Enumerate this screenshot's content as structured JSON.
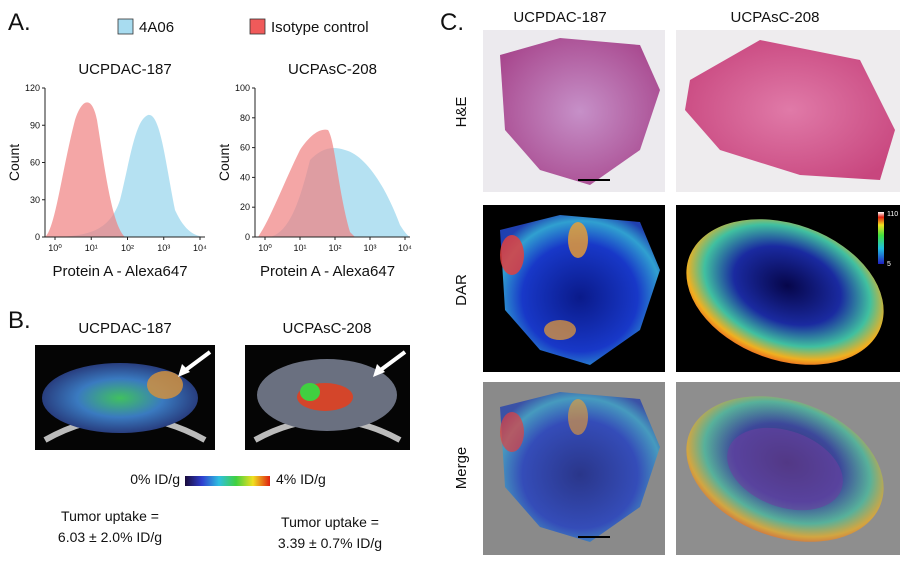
{
  "panel_a": {
    "letter": "A.",
    "legend": [
      "4A06",
      "Isotype control"
    ],
    "plots": [
      {
        "title": "UCPDAC-187",
        "y_label": "Count",
        "yticks": [
          "0",
          "30",
          "60",
          "90",
          "120"
        ],
        "xticks": [
          "10⁰",
          "10¹",
          "10²",
          "10³",
          "10⁴"
        ],
        "x_label": "Protein A - Alexa647"
      },
      {
        "title": "UCPAsC-208",
        "y_label": "Count",
        "yticks": [
          "0",
          "20",
          "40",
          "60",
          "80",
          "100"
        ],
        "xticks": [
          "10⁰",
          "10¹",
          "10²",
          "10³",
          "10⁴"
        ],
        "x_label": "Protein A - Alexa647"
      }
    ]
  },
  "panel_b": {
    "letter": "B.",
    "titles": [
      "UCPDAC-187",
      "UCPAsC-208"
    ],
    "colorbar": [
      "0% ID/g",
      "4% ID/g"
    ],
    "uptake": [
      [
        "Tumor uptake =",
        "6.03 ± 2.0% ID/g"
      ],
      [
        "Tumor uptake =",
        "3.39 ± 0.7% ID/g"
      ]
    ]
  },
  "panel_c": {
    "letter": "C.",
    "columns": [
      "UCPDAC-187",
      "UCPAsC-208"
    ],
    "rows": [
      "H&E",
      "DAR",
      "Merge"
    ],
    "colorbar": [
      "110",
      "5"
    ]
  }
}
